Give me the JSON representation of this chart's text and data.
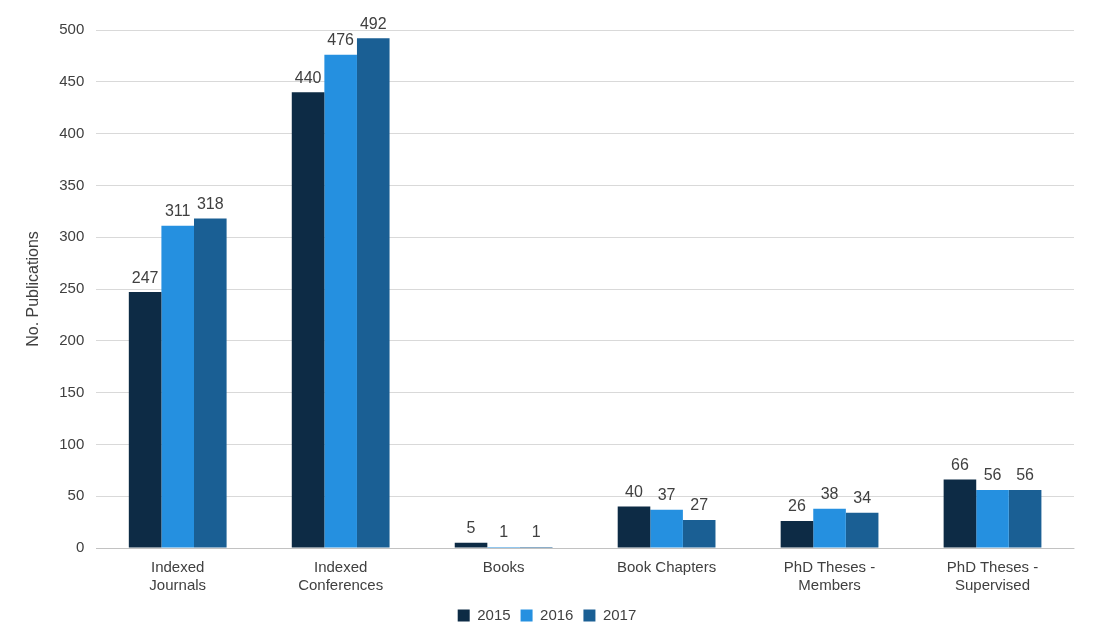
{
  "chart_data": {
    "type": "bar",
    "ylabel": "No. Publications",
    "categories": [
      "Indexed Journals",
      "Indexed Conferences",
      "Books",
      "Book Chapters",
      "PhD Theses - Members",
      "PhD Theses - Supervised"
    ],
    "series": [
      {
        "name": "2015",
        "color": "#0d2b45",
        "values": [
          247,
          440,
          5,
          40,
          26,
          66
        ]
      },
      {
        "name": "2016",
        "color": "#2590e0",
        "values": [
          311,
          476,
          1,
          37,
          38,
          56
        ]
      },
      {
        "name": "2017",
        "color": "#1a5f94",
        "values": [
          318,
          492,
          1,
          27,
          34,
          56
        ]
      }
    ],
    "ylim": [
      0,
      500
    ],
    "yticks": [
      0,
      50,
      100,
      150,
      200,
      250,
      300,
      350,
      400,
      450,
      500
    ],
    "grid": "y",
    "legend": "bottom",
    "data_labels": true
  }
}
